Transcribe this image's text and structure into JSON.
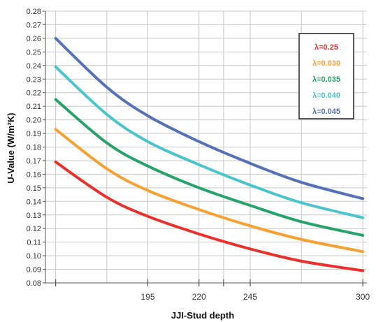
{
  "chart_data": {
    "type": "line",
    "title": "",
    "xlabel": "JJI-Stud depth",
    "ylabel": "U-Value (W/m²K)",
    "xlim": [
      145,
      302
    ],
    "ylim": [
      0.08,
      0.28
    ],
    "x_ticks": [
      195,
      220,
      245,
      300
    ],
    "y_ticks": [
      "0.28",
      "0.27",
      "0.26",
      "0.25",
      "0.24",
      "0.23",
      "0.22",
      "0.21",
      "0.20",
      "0.19",
      "0.18",
      "0.17",
      "0.16",
      "0.15",
      "0.14",
      "0.13",
      "0.12",
      "0.11",
      "0.10",
      "0.09",
      "0.08"
    ],
    "grid": true,
    "legend_position": "top-right",
    "series": [
      {
        "name": "λ=0.25",
        "color": "#e8312d",
        "x": [
          150,
          175,
          195,
          220,
          245,
          270,
          300
        ],
        "values": [
          0.169,
          0.143,
          0.129,
          0.116,
          0.105,
          0.096,
          0.089
        ]
      },
      {
        "name": "λ=0.030",
        "color": "#f5a233",
        "x": [
          150,
          175,
          195,
          220,
          245,
          270,
          300
        ],
        "values": [
          0.193,
          0.164,
          0.148,
          0.134,
          0.122,
          0.112,
          0.103
        ]
      },
      {
        "name": "λ=0.035",
        "color": "#27a36b",
        "x": [
          150,
          175,
          195,
          220,
          245,
          270,
          300
        ],
        "values": [
          0.215,
          0.183,
          0.166,
          0.15,
          0.137,
          0.125,
          0.115
        ]
      },
      {
        "name": "λ=0.040",
        "color": "#4cc4cc",
        "x": [
          150,
          175,
          195,
          220,
          245,
          270,
          300
        ],
        "values": [
          0.239,
          0.204,
          0.184,
          0.167,
          0.152,
          0.139,
          0.128
        ]
      },
      {
        "name": "λ=0.045",
        "color": "#5671b5",
        "x": [
          150,
          175,
          195,
          220,
          245,
          270,
          300
        ],
        "values": [
          0.26,
          0.224,
          0.203,
          0.184,
          0.168,
          0.154,
          0.142
        ]
      }
    ]
  }
}
